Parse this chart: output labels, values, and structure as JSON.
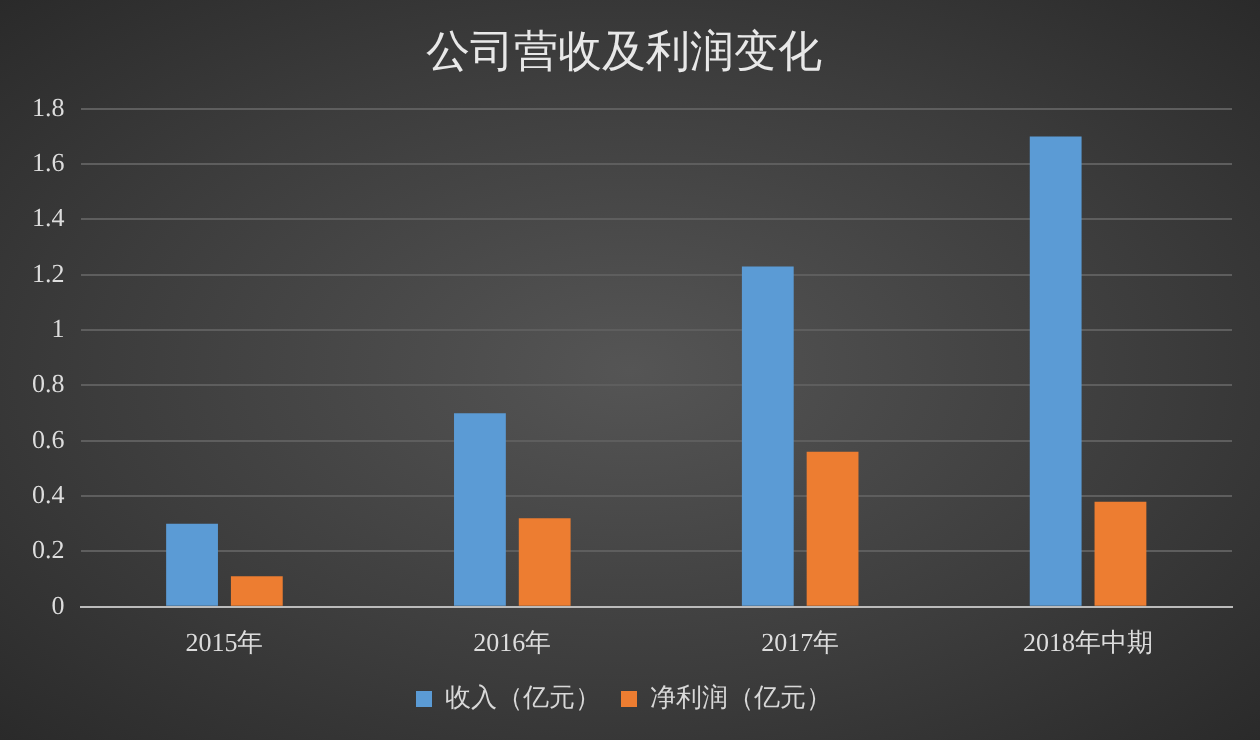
{
  "chart_data": {
    "type": "bar",
    "title": "公司营收及利润变化",
    "categories": [
      "2015年",
      "2016年",
      "2017年",
      "2018年中期"
    ],
    "series": [
      {
        "name": "收入（亿元）",
        "color": "#5b9bd5",
        "values": [
          0.3,
          0.7,
          1.23,
          1.7
        ]
      },
      {
        "name": "净利润（亿元）",
        "color": "#ed7d31",
        "values": [
          0.11,
          0.32,
          0.56,
          0.38
        ]
      }
    ],
    "ylim": [
      0,
      1.8
    ],
    "yticks": [
      0,
      0.2,
      0.4,
      0.6,
      0.8,
      1,
      1.2,
      1.4,
      1.6,
      1.8
    ],
    "grid": "y",
    "legend": "bottom"
  }
}
